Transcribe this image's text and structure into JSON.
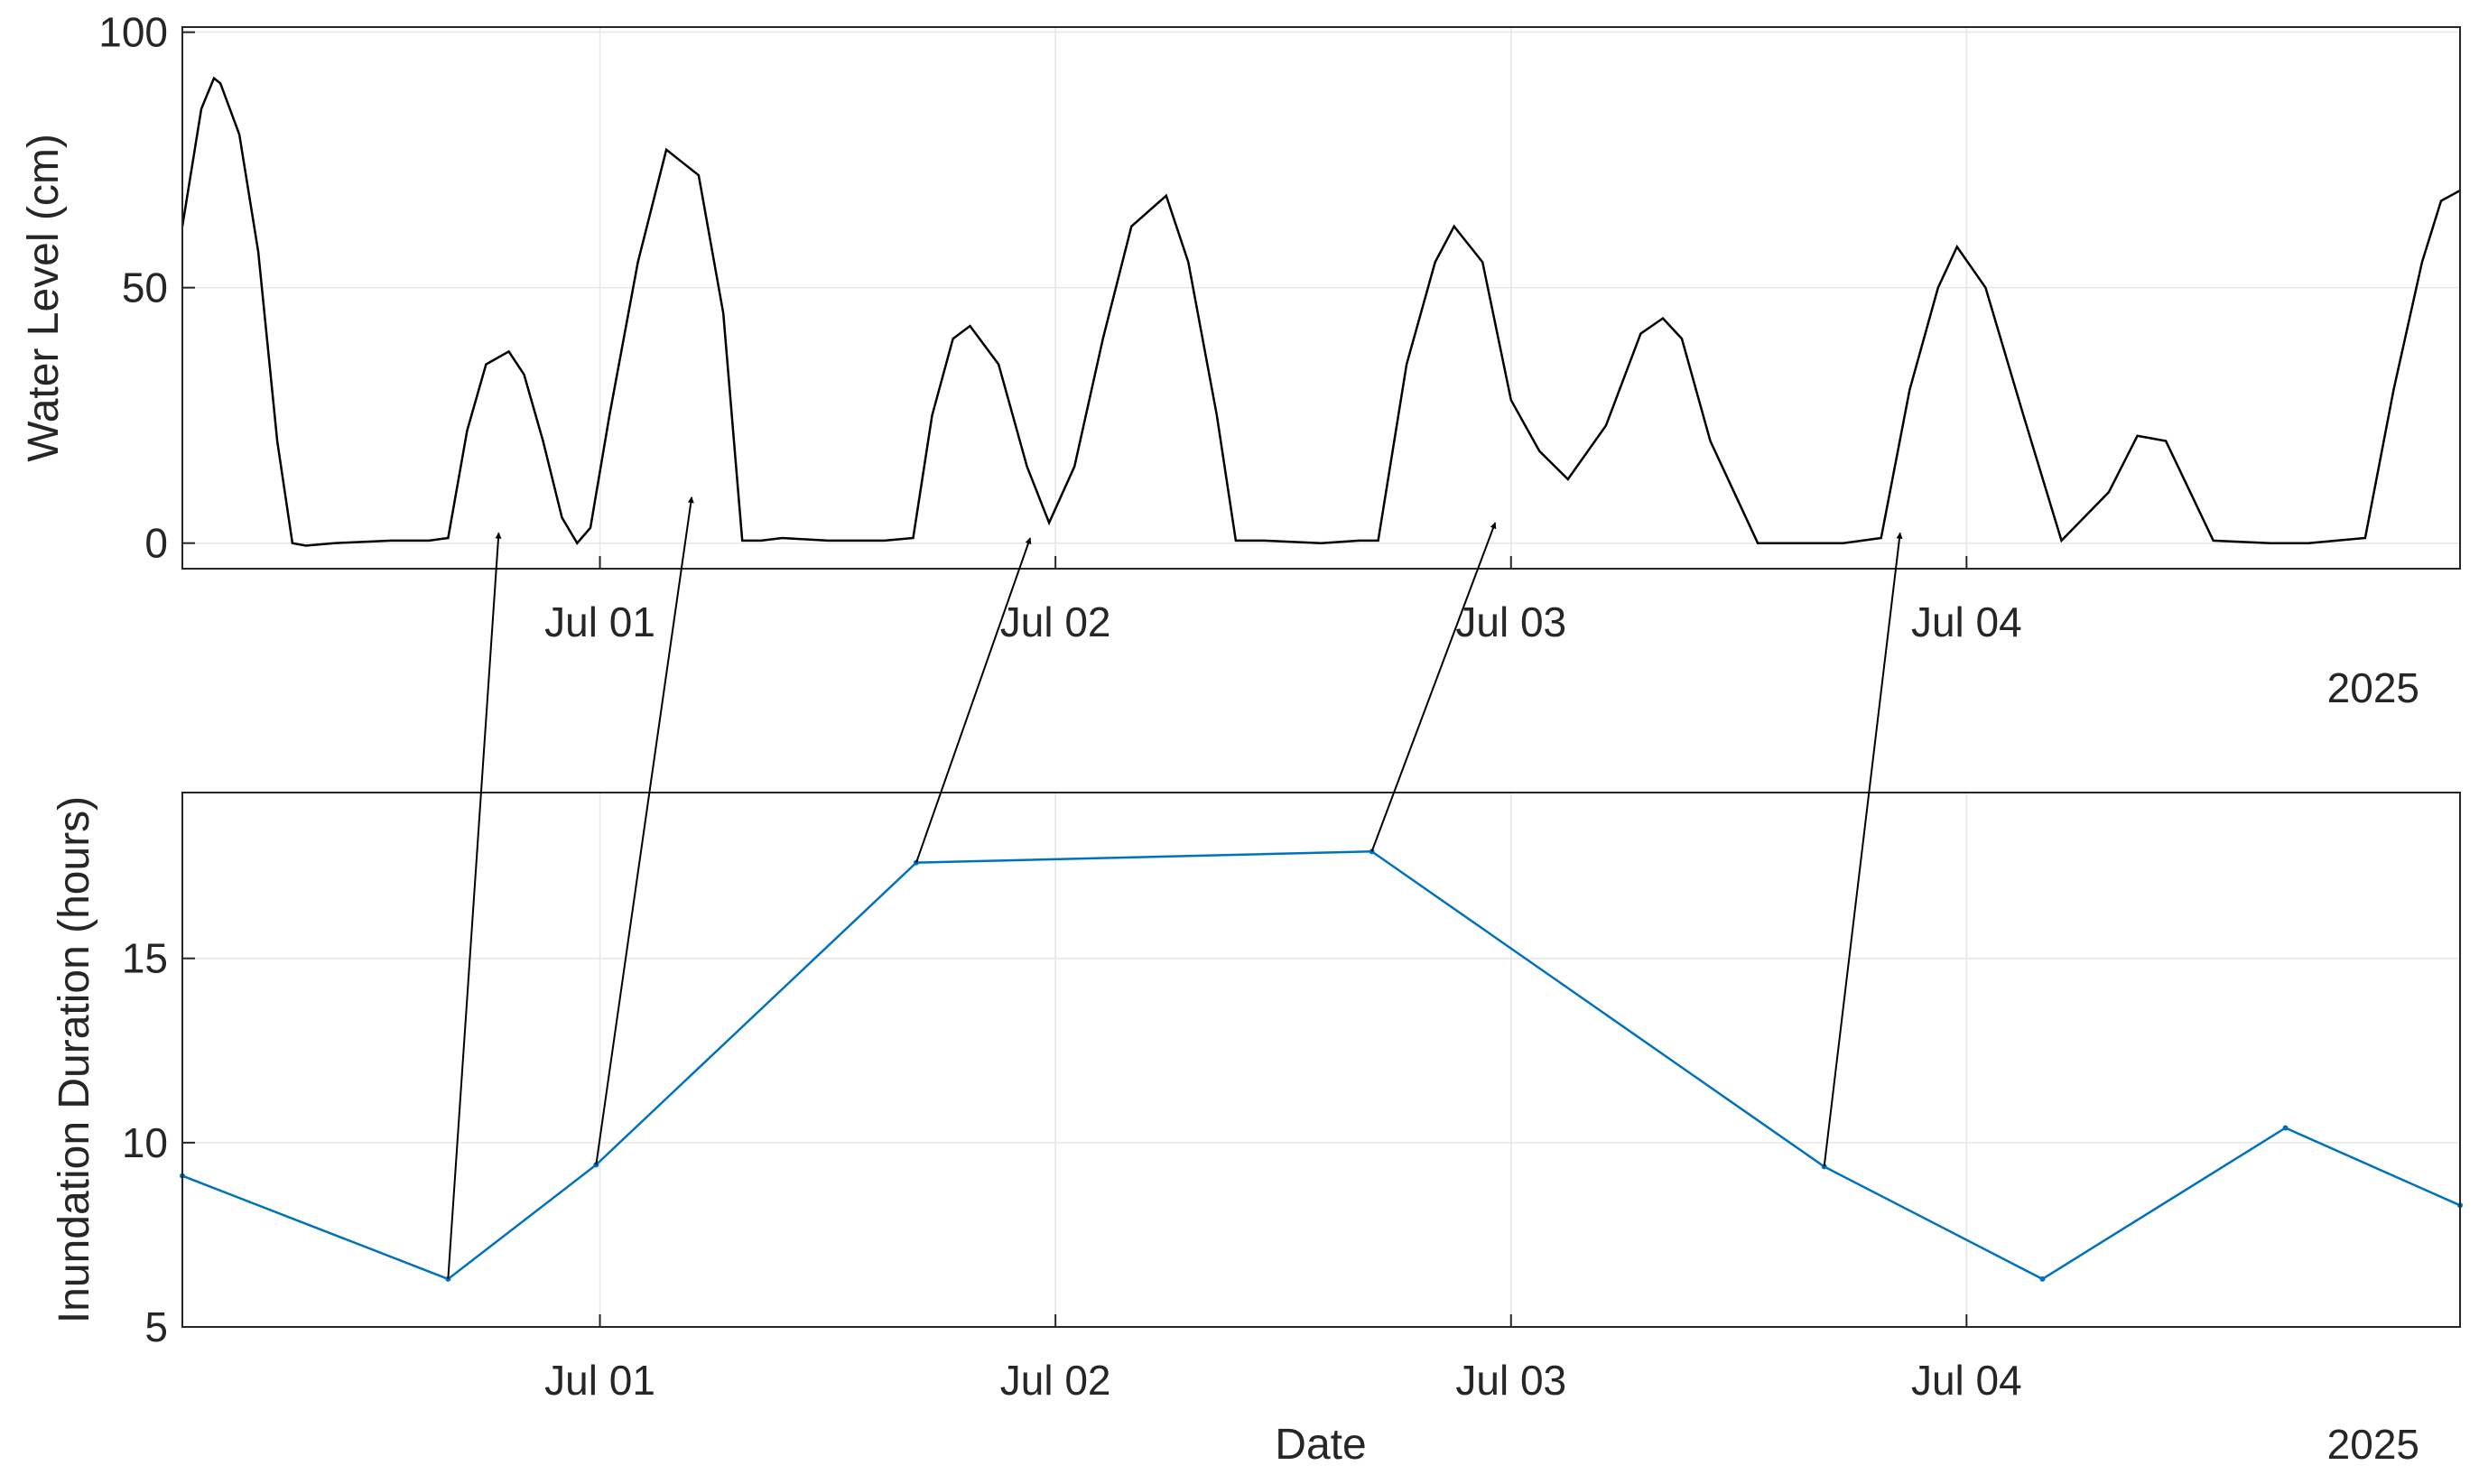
{
  "chart_data": [
    {
      "type": "line",
      "xlabel": "",
      "ylabel": "Water Level (cm)",
      "year_label": "2025",
      "xlim": [
        "2025-06-30T02:00",
        "2025-07-05T02:00"
      ],
      "ylim": [
        -5,
        101
      ],
      "yticks": [
        0,
        50,
        100
      ],
      "xticks": [
        {
          "date": "2025-07-01T00:00",
          "label": "Jul 01"
        },
        {
          "date": "2025-07-02T00:00",
          "label": "Jul 02"
        },
        {
          "date": "2025-07-03T00:00",
          "label": "Jul 03"
        },
        {
          "date": "2025-07-04T00:00",
          "label": "Jul 04"
        }
      ],
      "grid": true,
      "color": "#000000",
      "series": [
        {
          "x": [
            "2025-06-30T02:00",
            "2025-06-30T03:00",
            "2025-06-30T03:40",
            "2025-06-30T04:00",
            "2025-06-30T05:00",
            "2025-06-30T06:00",
            "2025-06-30T07:00",
            "2025-06-30T07:48",
            "2025-06-30T08:30",
            "2025-06-30T10:00",
            "2025-06-30T13:00",
            "2025-06-30T15:00",
            "2025-06-30T16:00",
            "2025-06-30T17:00",
            "2025-06-30T18:00",
            "2025-06-30T19:12",
            "2025-06-30T20:00",
            "2025-06-30T21:00",
            "2025-06-30T22:00",
            "2025-06-30T22:48",
            "2025-06-30T23:30",
            "2025-07-01T00:30",
            "2025-07-01T02:00",
            "2025-07-01T03:30",
            "2025-07-01T05:12",
            "2025-07-01T06:30",
            "2025-07-01T07:30",
            "2025-07-01T08:30",
            "2025-07-01T09:36",
            "2025-07-01T12:00",
            "2025-07-01T15:00",
            "2025-07-01T16:30",
            "2025-07-01T17:30",
            "2025-07-01T18:36",
            "2025-07-01T19:30",
            "2025-07-01T21:00",
            "2025-07-01T22:30",
            "2025-07-01T23:40",
            "2025-07-02T01:00",
            "2025-07-02T02:30",
            "2025-07-02T04:00",
            "2025-07-02T05:50",
            "2025-07-02T07:00",
            "2025-07-02T08:30",
            "2025-07-02T09:30",
            "2025-07-02T11:00",
            "2025-07-02T14:00",
            "2025-07-02T16:00",
            "2025-07-02T17:00",
            "2025-07-02T18:30",
            "2025-07-02T20:00",
            "2025-07-02T21:00",
            "2025-07-02T22:30",
            "2025-07-03T00:00",
            "2025-07-03T01:30",
            "2025-07-03T03:00",
            "2025-07-03T05:00",
            "2025-07-03T06:50",
            "2025-07-03T08:00",
            "2025-07-03T09:00",
            "2025-07-03T10:30",
            "2025-07-03T13:00",
            "2025-07-03T16:00",
            "2025-07-03T17:30",
            "2025-07-03T18:30",
            "2025-07-03T19:30",
            "2025-07-03T21:00",
            "2025-07-03T22:30",
            "2025-07-03T23:30",
            "2025-07-04T01:00",
            "2025-07-04T03:00",
            "2025-07-04T05:00",
            "2025-07-04T07:30",
            "2025-07-04T09:00",
            "2025-07-04T10:30",
            "2025-07-04T13:00",
            "2025-07-04T16:00",
            "2025-07-04T18:00",
            "2025-07-04T19:30",
            "2025-07-04T21:00",
            "2025-07-04T22:30",
            "2025-07-05T00:00",
            "2025-07-05T01:00",
            "2025-07-05T02:00"
          ],
          "y": [
            62,
            85,
            91,
            90,
            80,
            57,
            20,
            0,
            -0.5,
            0,
            0.5,
            0.5,
            1,
            22,
            35,
            37.5,
            33,
            20,
            5,
            0,
            3,
            25,
            55,
            77,
            72,
            45,
            0.5,
            0.5,
            1,
            0.5,
            0.5,
            1,
            25,
            40,
            42.5,
            35,
            15,
            4,
            15,
            40,
            62,
            68,
            55,
            25,
            0.5,
            0.5,
            0,
            0.5,
            0.5,
            35,
            55,
            62,
            55,
            28,
            18,
            12.5,
            23,
            41,
            44,
            40,
            20,
            0,
            0,
            0,
            0.5,
            1,
            30,
            50,
            58,
            50,
            25,
            0.5,
            10,
            21,
            20,
            0.5,
            0,
            0,
            0.5,
            1,
            30,
            55,
            67,
            69
          ]
        }
      ]
    },
    {
      "type": "line",
      "xlabel": "Date",
      "ylabel": "Inundation Duration (hours)",
      "year_label": "2025",
      "xlim": [
        "2025-06-30T02:00",
        "2025-07-05T02:00"
      ],
      "ylim": [
        5,
        19.5
      ],
      "yticks": [
        5,
        10,
        15
      ],
      "xticks": [
        {
          "date": "2025-07-01T00:00",
          "label": "Jul 01"
        },
        {
          "date": "2025-07-02T00:00",
          "label": "Jul 02"
        },
        {
          "date": "2025-07-03T00:00",
          "label": "Jul 03"
        },
        {
          "date": "2025-07-04T00:00",
          "label": "Jul 04"
        }
      ],
      "grid": true,
      "color": "#0072BD",
      "series": [
        {
          "x": [
            "2025-06-30T02:00",
            "2025-06-30T16:00",
            "2025-06-30T23:48",
            "2025-07-01T16:40",
            "2025-07-02T16:40",
            "2025-07-03T16:30",
            "2025-07-04T04:00",
            "2025-07-04T16:48",
            "2025-07-05T02:00"
          ],
          "y": [
            9.1,
            6.3,
            9.4,
            17.6,
            17.9,
            9.35,
            6.3,
            10.4,
            8.3
          ]
        }
      ]
    }
  ],
  "annotations": {
    "arrow_color": "#000000",
    "arrows": [
      {
        "from": {
          "x": "2025-06-30T16:00",
          "y": 6.3
        },
        "to": {
          "x": "2025-06-30T18:40",
          "y": 2
        }
      },
      {
        "from": {
          "x": "2025-06-30T23:48",
          "y": 9.4
        },
        "to": {
          "x": "2025-07-01T04:50",
          "y": 9
        }
      },
      {
        "from": {
          "x": "2025-07-01T16:40",
          "y": 17.6
        },
        "to": {
          "x": "2025-07-01T22:40",
          "y": 1
        }
      },
      {
        "from": {
          "x": "2025-07-02T16:40",
          "y": 17.9
        },
        "to": {
          "x": "2025-07-02T23:10",
          "y": 4
        }
      },
      {
        "from": {
          "x": "2025-07-03T16:30",
          "y": 9.35
        },
        "to": {
          "x": "2025-07-03T20:30",
          "y": 2
        }
      }
    ]
  }
}
